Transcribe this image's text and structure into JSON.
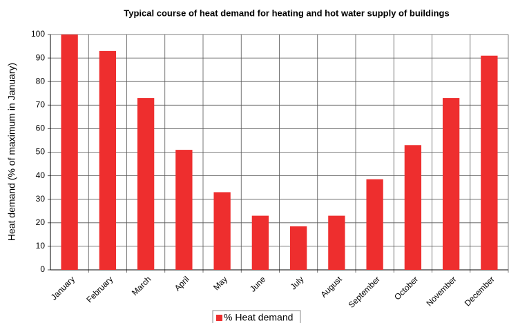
{
  "chart_data": {
    "type": "bar",
    "title": "Typical course of heat demand for heating and hot water supply of buildings",
    "y_label": "Heat demand (% of maximum in January)",
    "categories": [
      "January",
      "February",
      "March",
      "April",
      "May",
      "June",
      "July",
      "August",
      "September",
      "October",
      "November",
      "December"
    ],
    "series": [
      {
        "name": "% Heat demand",
        "color": "#ee2e2e",
        "values": [
          100,
          93,
          73,
          51,
          33,
          23,
          18.5,
          23,
          38.5,
          53,
          73,
          91
        ]
      }
    ],
    "ylim": [
      0,
      100
    ],
    "yticks": [
      0,
      10,
      20,
      30,
      40,
      50,
      60,
      70,
      80,
      90,
      100
    ],
    "grid": true
  }
}
